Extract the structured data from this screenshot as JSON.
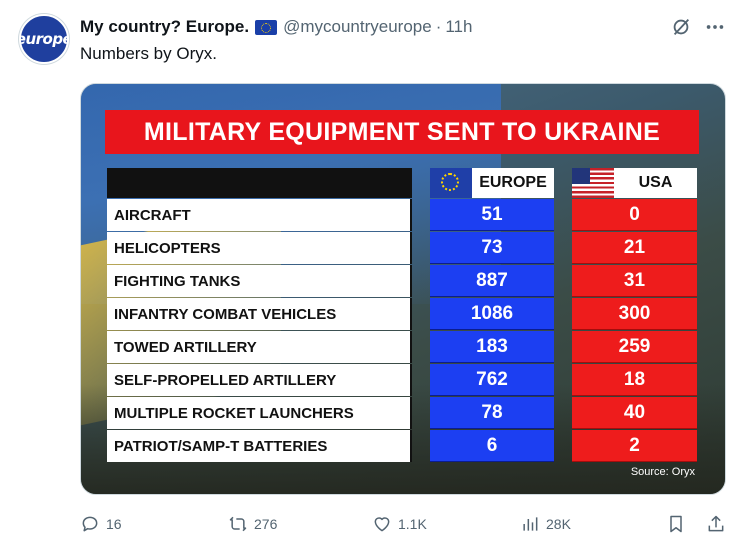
{
  "author": {
    "display_name": "My country? Europe.",
    "handle": "@mycountryeurope",
    "time": "11h",
    "avatar_text": "europe"
  },
  "tweet_text": "Numbers by Oryx.",
  "image": {
    "title": "MILITARY EQUIPMENT SENT TO UKRAINE",
    "columns": {
      "europe": "EUROPE",
      "usa": "USA"
    },
    "rows": [
      {
        "label": "AIRCRAFT",
        "europe": "51",
        "usa": "0"
      },
      {
        "label": "HELICOPTERS",
        "europe": "73",
        "usa": "21"
      },
      {
        "label": "FIGHTING TANKS",
        "europe": "887",
        "usa": "31"
      },
      {
        "label": "INFANTRY COMBAT VEHICLES",
        "europe": "1086",
        "usa": "300"
      },
      {
        "label": "TOWED ARTILLERY",
        "europe": "183",
        "usa": "259"
      },
      {
        "label": "SELF-PROPELLED ARTILLERY",
        "europe": "762",
        "usa": "18"
      },
      {
        "label": "MULTIPLE ROCKET LAUNCHERS",
        "europe": "78",
        "usa": "40"
      },
      {
        "label": "PATRIOT/SAMP-T BATTERIES",
        "europe": "6",
        "usa": "2"
      }
    ],
    "source": "Source: Oryx"
  },
  "actions": {
    "replies": "16",
    "reposts": "276",
    "likes": "1.1K",
    "views": "28K"
  },
  "icons": [
    "grok-icon",
    "more-icon",
    "reply-icon",
    "repost-icon",
    "like-icon",
    "views-icon",
    "bookmark-icon",
    "share-icon"
  ],
  "colors": {
    "europe_blue": "#1c3ff2",
    "usa_red": "#ee1c1c",
    "banner_red": "#e8151c",
    "muted": "#536471"
  }
}
